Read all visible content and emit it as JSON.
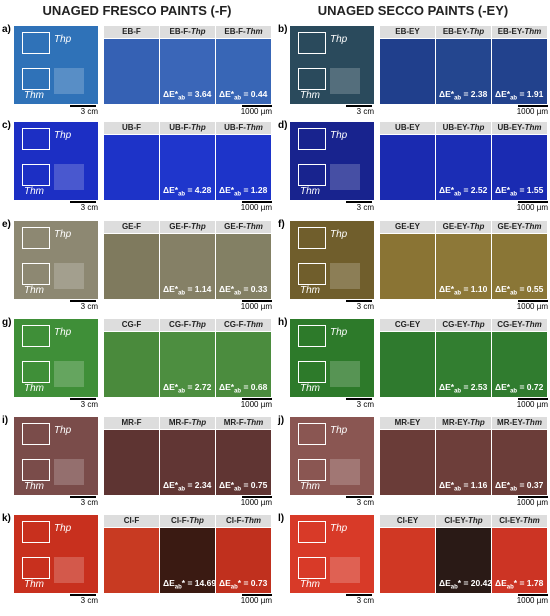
{
  "headers": [
    "UNAGED FRESCO PAINTS (-F)",
    "UNAGED SECCO PAINTS (-EY)"
  ],
  "panels": [
    {
      "letter": "a)",
      "macro_scale": "3 cm",
      "micro_scale": "1000 µm",
      "boxes": [
        "Thp",
        "Thm"
      ],
      "colors": [
        "#2f72b8",
        "#3561b4",
        "#3a66b8",
        "#3866b6"
      ],
      "images": [
        {
          "label": "EB-F"
        },
        {
          "label": "EB-F-",
          "suffix": "Thp",
          "delta": {
            "pre": "ΔE*",
            "sub": "ab",
            "post": " = 3.64"
          }
        },
        {
          "label": "EB-F-",
          "suffix": "Thm",
          "delta": {
            "pre": "ΔE*",
            "sub": "ab",
            "post": " = 0.44"
          }
        }
      ]
    },
    {
      "letter": "b)",
      "macro_scale": "3 cm",
      "micro_scale": "1000 µm",
      "boxes": [
        "Thp",
        "Thm"
      ],
      "colors": [
        "#2a4a5c",
        "#203f8c",
        "#24468f",
        "#22428d"
      ],
      "images": [
        {
          "label": "EB-EY"
        },
        {
          "label": "EB-EY-",
          "suffix": "Thp",
          "delta": {
            "pre": "ΔE*",
            "sub": "ab",
            "post": " = 2.38"
          }
        },
        {
          "label": "EB-EY-",
          "suffix": "Thm",
          "delta": {
            "pre": "ΔE*",
            "sub": "ab",
            "post": " = 1.91"
          }
        }
      ]
    },
    {
      "letter": "c)",
      "macro_scale": "3 cm",
      "micro_scale": "1000 µm",
      "boxes": [
        "Thp",
        "Thm"
      ],
      "colors": [
        "#1c2fc4",
        "#1d33c8",
        "#1f36cc",
        "#1d34c9"
      ],
      "images": [
        {
          "label": "UB-F"
        },
        {
          "label": "UB-F-",
          "suffix": "Thp",
          "delta": {
            "pre": "ΔE*",
            "sub": "ab",
            "post": " = 4.28"
          }
        },
        {
          "label": "UB-F-",
          "suffix": "Thm",
          "delta": {
            "pre": "ΔE*",
            "sub": "ab",
            "post": " = 1.28"
          }
        }
      ]
    },
    {
      "letter": "d)",
      "macro_scale": "3 cm",
      "micro_scale": "1000 µm",
      "boxes": [
        "Thp",
        "Thm"
      ],
      "colors": [
        "#18238e",
        "#1a2ab0",
        "#1b2db5",
        "#1a2bb2"
      ],
      "images": [
        {
          "label": "UB-EY"
        },
        {
          "label": "UB-EY-",
          "suffix": "Thp",
          "delta": {
            "pre": "ΔE*",
            "sub": "ab",
            "post": " = 2.52"
          }
        },
        {
          "label": "UB-EY-",
          "suffix": "Thm",
          "delta": {
            "pre": "ΔE*",
            "sub": "ab",
            "post": " = 1.55"
          }
        }
      ]
    },
    {
      "letter": "e)",
      "macro_scale": "3 cm",
      "micro_scale": "1000 µm",
      "boxes": [
        "Thp",
        "Thm"
      ],
      "colors": [
        "#8d8872",
        "#7f7a5e",
        "#858066",
        "#838064"
      ],
      "images": [
        {
          "label": "GE-F"
        },
        {
          "label": "GE-F-",
          "suffix": "Thp",
          "delta": {
            "pre": "ΔE*",
            "sub": "ab",
            "post": " = 1.14"
          }
        },
        {
          "label": "GE-F-",
          "suffix": "Thm",
          "delta": {
            "pre": "ΔE*",
            "sub": "ab",
            "post": " = 0.33"
          }
        }
      ]
    },
    {
      "letter": "f)",
      "macro_scale": "3 cm",
      "micro_scale": "1000 µm",
      "boxes": [
        "Thp",
        "Thm"
      ],
      "colors": [
        "#705e2c",
        "#8a7434",
        "#8d7838",
        "#8a7636"
      ],
      "images": [
        {
          "label": "GE-EY"
        },
        {
          "label": "GE-EY-",
          "suffix": "Thp",
          "delta": {
            "pre": "ΔE*",
            "sub": "ab",
            "post": " = 1.10"
          }
        },
        {
          "label": "GE-EY-",
          "suffix": "Thm",
          "delta": {
            "pre": "ΔE*",
            "sub": "ab",
            "post": " = 0.55"
          }
        }
      ]
    },
    {
      "letter": "g)",
      "macro_scale": "3 cm",
      "micro_scale": "1000 µm",
      "boxes": [
        "Thp",
        "Thm"
      ],
      "colors": [
        "#3f8f38",
        "#4a8a3c",
        "#4d8e40",
        "#4b8c3e"
      ],
      "images": [
        {
          "label": "CG-F"
        },
        {
          "label": "CG-F-",
          "suffix": "Thp",
          "delta": {
            "pre": "ΔE*",
            "sub": "ab",
            "post": " = 2.72"
          }
        },
        {
          "label": "CG-F-",
          "suffix": "Thm",
          "delta": {
            "pre": "ΔE*",
            "sub": "ab",
            "post": " = 0.68"
          }
        }
      ]
    },
    {
      "letter": "h)",
      "macro_scale": "3 cm",
      "micro_scale": "1000 µm",
      "boxes": [
        "Thp",
        "Thm"
      ],
      "colors": [
        "#2d7a2a",
        "#2f7a2e",
        "#327e30",
        "#307c2f"
      ],
      "images": [
        {
          "label": "CG-EY"
        },
        {
          "label": "CG-EY-",
          "suffix": "Thp",
          "delta": {
            "pre": "ΔE*",
            "sub": "ab",
            "post": " = 2.53"
          }
        },
        {
          "label": "CG-EY-",
          "suffix": "Thm",
          "delta": {
            "pre": "ΔE*",
            "sub": "ab",
            "post": " = 0.72"
          }
        }
      ]
    },
    {
      "letter": "i)",
      "macro_scale": "3 cm",
      "micro_scale": "1000 µm",
      "boxes": [
        "Thp",
        "Thm"
      ],
      "colors": [
        "#7a4c4a",
        "#5e3432",
        "#613634",
        "#603533"
      ],
      "images": [
        {
          "label": "MR-F"
        },
        {
          "label": "MR-F-",
          "suffix": "Thp",
          "delta": {
            "pre": "ΔE*",
            "sub": "ab",
            "post": " = 2.34"
          }
        },
        {
          "label": "MR-F-",
          "suffix": "Thm",
          "delta": {
            "pre": "ΔE*",
            "sub": "ab",
            "post": " = 0.75"
          }
        }
      ]
    },
    {
      "letter": "j)",
      "macro_scale": "3 cm",
      "micro_scale": "1000 µm",
      "boxes": [
        "Thp",
        "Thm"
      ],
      "colors": [
        "#8a5652",
        "#6a3c38",
        "#6d3e3a",
        "#6b3d39"
      ],
      "images": [
        {
          "label": "MR-EY"
        },
        {
          "label": "MR-EY-",
          "suffix": "Thp",
          "delta": {
            "pre": "ΔE*",
            "sub": "ab",
            "post": " = 1.16"
          }
        },
        {
          "label": "MR-EY-",
          "suffix": "Thm",
          "delta": {
            "pre": "ΔE*",
            "sub": "ab",
            "post": " = 0.37"
          }
        }
      ]
    },
    {
      "letter": "k)",
      "macro_scale": "3 cm",
      "micro_scale": "1000 µm",
      "boxes": [
        "Thp",
        "Thm"
      ],
      "colors": [
        "#c8301e",
        "#c83a22",
        "#3a1a12",
        "#c0301e"
      ],
      "images": [
        {
          "label": "CI-F"
        },
        {
          "label": "CI-F-",
          "suffix": "Thp",
          "delta": {
            "pre": "ΔE",
            "sub": "ab",
            "post": "* = 14.69"
          }
        },
        {
          "label": "CI-F-",
          "suffix": "Thm",
          "delta": {
            "pre": "ΔE",
            "sub": "ab",
            "post": "* = 0.73"
          }
        }
      ]
    },
    {
      "letter": "l)",
      "macro_scale": "3 cm",
      "micro_scale": "1000 µm",
      "boxes": [
        "Thp",
        "Thm"
      ],
      "colors": [
        "#d83a28",
        "#d03824",
        "#2a1a16",
        "#cc3424"
      ],
      "images": [
        {
          "label": "CI-EY"
        },
        {
          "label": "CI-EY-",
          "suffix": "Thp",
          "delta": {
            "pre": "ΔE",
            "sub": "ab",
            "post": "* = 20.42"
          }
        },
        {
          "label": "CI-EY-",
          "suffix": "Thm",
          "delta": {
            "pre": "ΔE",
            "sub": "ab",
            "post": "* = 1.78"
          }
        }
      ]
    }
  ]
}
